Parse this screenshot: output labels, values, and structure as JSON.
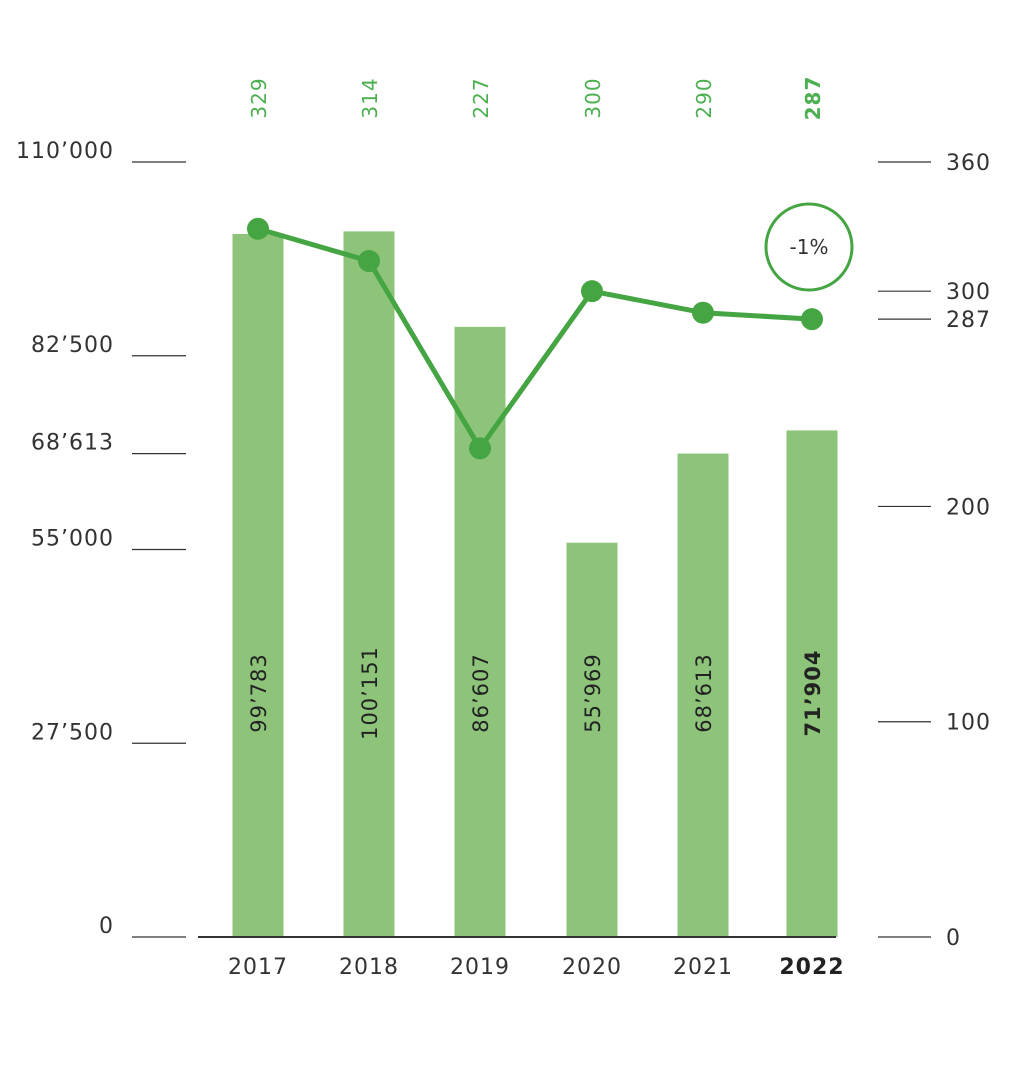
{
  "chart_data": {
    "type": "bar",
    "categories": [
      "2017",
      "2018",
      "2019",
      "2020",
      "2021",
      "2022"
    ],
    "highlight_category": "2022",
    "series": [
      {
        "type": "bar",
        "axis": "left",
        "values": [
          99783,
          100151,
          86607,
          55969,
          68613,
          71904
        ],
        "value_labels": [
          "99’783",
          "100’151",
          "86’607",
          "55’969",
          "68’613",
          "71’904"
        ],
        "color": "#8dc47a"
      },
      {
        "type": "line",
        "axis": "right",
        "values": [
          329,
          314,
          227,
          300,
          290,
          287
        ],
        "value_labels": [
          "329",
          "314",
          "227",
          "300",
          "290",
          "287"
        ],
        "color": "#44a542"
      }
    ],
    "left_axis": {
      "ylim": [
        0,
        110000
      ],
      "ticks": [
        0,
        27500,
        55000,
        68613,
        82500,
        110000
      ],
      "tick_labels": [
        "0",
        "27’500",
        "55’000",
        "68’613",
        "82’500",
        "110’000"
      ]
    },
    "right_axis": {
      "ylim": [
        0,
        360
      ],
      "ticks": [
        0,
        100,
        200,
        287,
        300,
        360
      ],
      "tick_labels": [
        "0",
        "100",
        "200",
        "287",
        "300",
        "360"
      ]
    },
    "annotation": {
      "text": "-1%",
      "category": "2022"
    },
    "grid": false,
    "legend": "none"
  }
}
